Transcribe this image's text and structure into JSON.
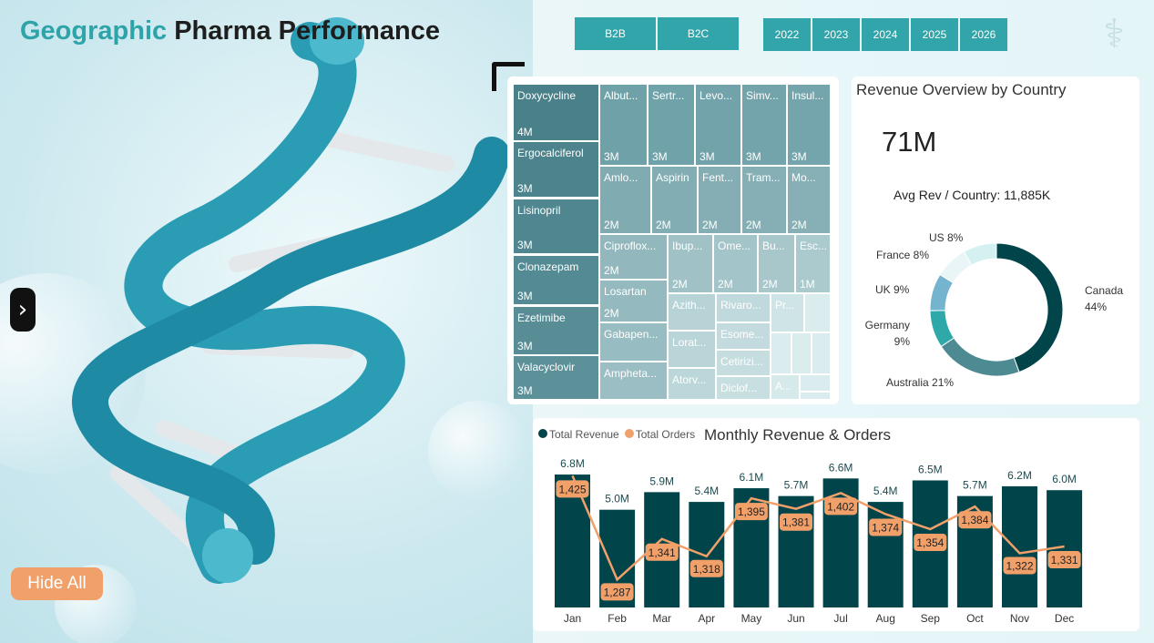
{
  "header": {
    "title_accent": "Geographic",
    "title_rest": "Pharma Performance"
  },
  "segment_slicer": [
    "B2B",
    "B2C"
  ],
  "year_slicer": [
    "2022",
    "2023",
    "2024",
    "2025",
    "2026"
  ],
  "logo_icon": "caduceus-icon",
  "hide_all_label": "Hide All",
  "nav_icon": "chevron-right-icon",
  "treemap": [
    {
      "name": "Doxycycline",
      "value": "4M"
    },
    {
      "name": "Ergocalciferol",
      "value": "3M"
    },
    {
      "name": "Lisinopril",
      "value": "3M"
    },
    {
      "name": "Clonazepam",
      "value": "3M"
    },
    {
      "name": "Ezetimibe",
      "value": "3M"
    },
    {
      "name": "Valacyclovir",
      "value": "3M"
    },
    {
      "name": "Albut...",
      "value": "3M"
    },
    {
      "name": "Sertr...",
      "value": "3M"
    },
    {
      "name": "Levo...",
      "value": "3M"
    },
    {
      "name": "Simv...",
      "value": "3M"
    },
    {
      "name": "Insul...",
      "value": "3M"
    },
    {
      "name": "Amlo...",
      "value": "2M"
    },
    {
      "name": "Aspirin",
      "value": "2M"
    },
    {
      "name": "Fent...",
      "value": "2M"
    },
    {
      "name": "Tram...",
      "value": "2M"
    },
    {
      "name": "Mo...",
      "value": "2M"
    },
    {
      "name": "Ciproflox...",
      "value": "2M"
    },
    {
      "name": "Losartan",
      "value": "2M"
    },
    {
      "name": "Gabapen...",
      "value": ""
    },
    {
      "name": "Ampheta...",
      "value": ""
    },
    {
      "name": "Ibup...",
      "value": "2M"
    },
    {
      "name": "Ome...",
      "value": "2M"
    },
    {
      "name": "Bu...",
      "value": "2M"
    },
    {
      "name": "Esc...",
      "value": "1M"
    },
    {
      "name": "Azith...",
      "value": ""
    },
    {
      "name": "Lorat...",
      "value": ""
    },
    {
      "name": "Atorv...",
      "value": ""
    },
    {
      "name": "Rivaro...",
      "value": ""
    },
    {
      "name": "Esome...",
      "value": ""
    },
    {
      "name": "Cetirizi...",
      "value": ""
    },
    {
      "name": "Diclof...",
      "value": ""
    },
    {
      "name": "Pr...",
      "value": ""
    },
    {
      "name": "A...",
      "value": ""
    }
  ],
  "revenue_overview": {
    "title": "Revenue Overview by Country",
    "total": "71M",
    "avg_label": "Avg Rev / Country: 11,885K"
  },
  "chart_data": [
    {
      "type": "pie",
      "title": "Revenue Overview by Country",
      "slices": [
        {
          "label": "Canada",
          "pct": 44,
          "text": "Canada",
          "pct_text": "44%",
          "color": "#01454a"
        },
        {
          "label": "Australia",
          "pct": 21,
          "text": "Australia 21%",
          "color": "#4e8a92"
        },
        {
          "label": "Germany",
          "pct": 9,
          "text": "Germany",
          "pct_text": "9%",
          "color": "#2ea8a8"
        },
        {
          "label": "UK",
          "pct": 9,
          "text": "UK 9%",
          "color": "#74b4cf"
        },
        {
          "label": "France",
          "pct": 8,
          "text": "France 8%",
          "color": "#e9f5f7"
        },
        {
          "label": "US",
          "pct": 8,
          "text": "US 8%",
          "color": "#d4f0f0"
        }
      ]
    },
    {
      "type": "bar",
      "title": "Monthly Revenue & Orders",
      "legend": [
        "Total Revenue",
        "Total Orders"
      ],
      "categories": [
        "Jan",
        "Feb",
        "Mar",
        "Apr",
        "May",
        "Jun",
        "Jul",
        "Aug",
        "Sep",
        "Oct",
        "Nov",
        "Dec"
      ],
      "series": [
        {
          "name": "Total Revenue",
          "type": "bar",
          "values": [
            6.8,
            5.0,
            5.9,
            5.4,
            6.1,
            5.7,
            6.6,
            5.4,
            6.5,
            5.7,
            6.2,
            6.0
          ],
          "labels": [
            "6.8M",
            "5.0M",
            "5.9M",
            "5.4M",
            "6.1M",
            "5.7M",
            "6.6M",
            "5.4M",
            "6.5M",
            "5.7M",
            "6.2M",
            "6.0M"
          ],
          "color": "#01454a"
        },
        {
          "name": "Total Orders",
          "type": "line",
          "values": [
            1425,
            1287,
            1341,
            1318,
            1395,
            1381,
            1402,
            1374,
            1354,
            1384,
            1322,
            1331
          ],
          "labels": [
            "1,425",
            "1,287",
            "1,341",
            "1,318",
            "1,395",
            "1,381",
            "1,402",
            "1,374",
            "1,354",
            "1,384",
            "1,322",
            "1,331"
          ],
          "color": "#f1a06a"
        }
      ],
      "ylim": [
        0,
        7.78
      ],
      "y2lim": [
        1250,
        1452
      ]
    }
  ]
}
